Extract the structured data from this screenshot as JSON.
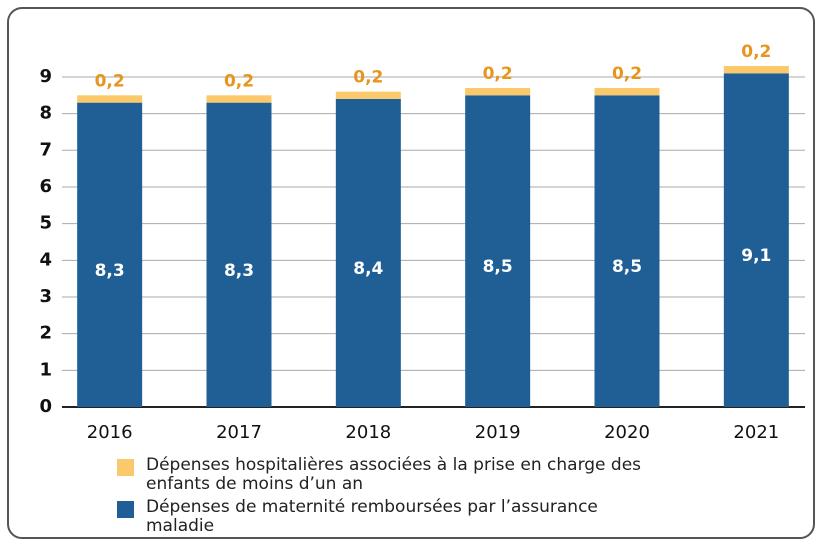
{
  "chart_data": {
    "type": "stacked_bar",
    "categories": [
      "2016",
      "2017",
      "2018",
      "2019",
      "2020",
      "2021"
    ],
    "series": [
      {
        "name": "Dépenses de maternité remboursées par l’assurance maladie",
        "color": "#1f5f96",
        "values": [
          8.3,
          8.3,
          8.4,
          8.5,
          8.5,
          9.1
        ],
        "value_labels": [
          "8,3",
          "8,3",
          "8,4",
          "8,5",
          "8,5",
          "9,1"
        ]
      },
      {
        "name": "Dépenses hospitalières associées à la prise en charge des enfants de moins d’un an",
        "color": "#fbc96b",
        "values": [
          0.2,
          0.2,
          0.2,
          0.2,
          0.2,
          0.2
        ],
        "value_labels": [
          "0,2",
          "0,2",
          "0,2",
          "0,2",
          "0,2",
          "0,2"
        ]
      }
    ],
    "ylim": [
      0,
      9.5
    ],
    "yticks": [
      0,
      1,
      2,
      3,
      4,
      5,
      6,
      7,
      8,
      9
    ],
    "grid": true
  }
}
